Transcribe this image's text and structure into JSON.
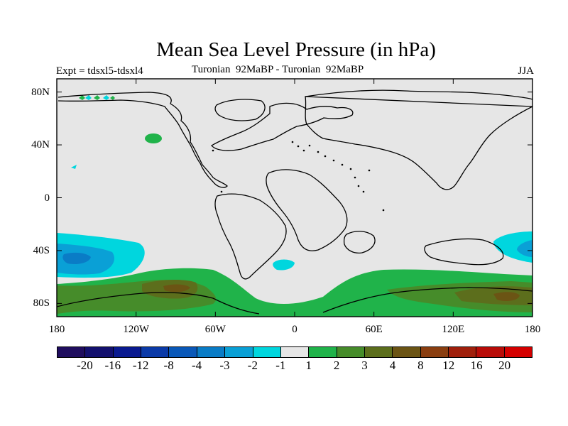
{
  "title": "Mean Sea Level Pressure (in hPa)",
  "expt_label": "Expt = tdsxl5-tdsxl4",
  "subtitle": "Turonian  92MaBP - Turonian  92MaBP",
  "season": "JJA",
  "map": {
    "projection": "cylindrical equidistant",
    "lon_range": [
      -180,
      180
    ],
    "lat_range": [
      -90,
      90
    ],
    "background_color": "#e6e6e6",
    "y_ticks": [
      {
        "value": 80,
        "label": "80N"
      },
      {
        "value": 40,
        "label": "40N"
      },
      {
        "value": 0,
        "label": "0"
      },
      {
        "value": -40,
        "label": "40S"
      },
      {
        "value": -80,
        "label": "80S"
      }
    ],
    "x_ticks": [
      {
        "value": -180,
        "label": "180"
      },
      {
        "value": -120,
        "label": "120W"
      },
      {
        "value": -60,
        "label": "60W"
      },
      {
        "value": 0,
        "label": "0"
      },
      {
        "value": 60,
        "label": "60E"
      },
      {
        "value": 120,
        "label": "120E"
      },
      {
        "value": 180,
        "label": "180"
      }
    ]
  },
  "colorbar": {
    "colors": [
      "#1f0d5e",
      "#13106e",
      "#0a1a90",
      "#0b3aa8",
      "#0a58b8",
      "#0a7cc6",
      "#0aa0d6",
      "#00d6de",
      "#e6e6e6",
      "#20b34a",
      "#468c2a",
      "#5c6e1c",
      "#6b5414",
      "#8a3e10",
      "#a0200c",
      "#b80c08",
      "#d40000"
    ],
    "labels": [
      "-20",
      "-16",
      "-12",
      "-8",
      "-4",
      "-3",
      "-2",
      "-1",
      "1",
      "2",
      "3",
      "4",
      "8",
      "12",
      "16",
      "20"
    ]
  }
}
